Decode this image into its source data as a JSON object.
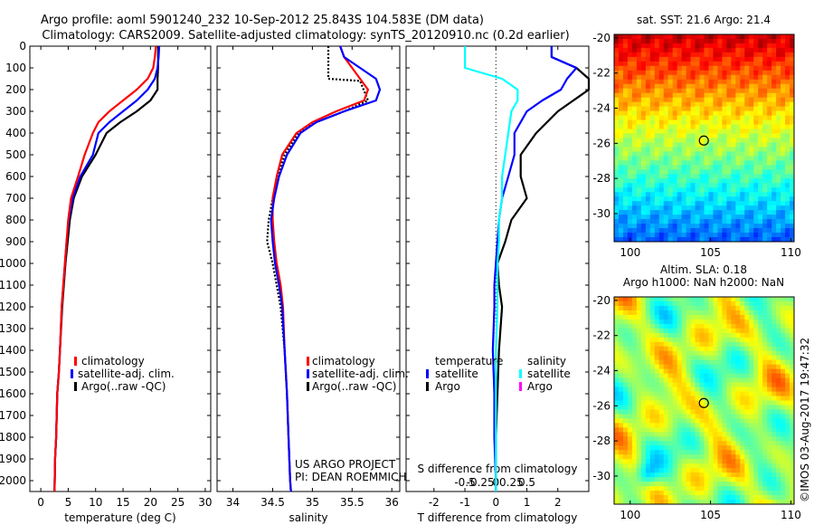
{
  "title": {
    "line1": "Argo profile: aoml 5901240_232 10-Sep-2012 25.843S 104.583E (DM data)",
    "line2": "Climatology: CARS2009. Satellite-adjusted climatology: synTS_20120910.nc (0.2d earlier)"
  },
  "legend_items": {
    "clim": "climatology",
    "sat": "satellite-adj. clim.",
    "argo": "Argo(..raw -QC)"
  },
  "legend_diff": {
    "temp_header": "temperature",
    "sal_header": "salinity",
    "t_sat": "satellite",
    "t_argo": "Argo",
    "s_sat": "satellite",
    "s_argo": "Argo"
  },
  "project_note": {
    "line1": "US ARGO PROJECT",
    "line2": "PI: DEAN ROEMMICH"
  },
  "sst_label": "sat. SST: 21.6 Argo: 21.4",
  "sla_label1": "Altim. SLA: 0.18",
  "sla_label2": "Argo h1000: NaN h2000: NaN",
  "imos_stamp": "©IMOS 03-Aug-2017 19:47:32",
  "colors": {
    "climatology": "#ff0000",
    "satellite": "#0000ff",
    "argo": "#000000",
    "sal_satellite": "#00ffff",
    "sal_argo": "#ff00ff"
  },
  "chart_data": [
    {
      "type": "line",
      "panel": "temperature",
      "xlabel": "temperature (deg C)",
      "ylabel": "",
      "xlim": [
        -2,
        31
      ],
      "ylim": [
        2050,
        0
      ],
      "xticks": [
        0,
        5,
        10,
        15,
        20,
        25,
        30
      ],
      "yticks": [
        0,
        100,
        200,
        300,
        400,
        500,
        600,
        700,
        800,
        900,
        1000,
        1100,
        1200,
        1300,
        1400,
        1500,
        1600,
        1700,
        1800,
        1900,
        2000
      ],
      "series": [
        {
          "name": "climatology",
          "x": [
            21.0,
            20.8,
            20.5,
            19.5,
            17.5,
            15.0,
            12.5,
            10.5,
            9.5,
            8.0,
            6.8,
            5.5,
            5.0,
            4.7,
            4.4,
            4.1,
            3.8,
            3.5,
            3.3,
            3.0,
            2.8,
            2.6,
            2.5
          ],
          "y": [
            0,
            50,
            100,
            150,
            200,
            250,
            300,
            350,
            400,
            500,
            600,
            700,
            800,
            900,
            1000,
            1100,
            1200,
            1400,
            1500,
            1600,
            1800,
            1900,
            2050
          ]
        },
        {
          "name": "satellite-adj. clim.",
          "x": [
            21.6,
            21.5,
            21.3,
            20.8,
            19.5,
            17.5,
            15.0,
            12.5,
            10.5,
            9.5,
            7.2,
            5.8,
            5.1,
            4.7,
            4.4,
            4.1,
            3.8,
            3.5,
            3.3,
            3.0,
            2.8,
            2.6,
            2.5
          ],
          "y": [
            0,
            50,
            100,
            150,
            200,
            250,
            300,
            350,
            400,
            500,
            600,
            700,
            800,
            900,
            1000,
            1100,
            1200,
            1400,
            1500,
            1600,
            1800,
            1900,
            2050
          ]
        },
        {
          "name": "Argo(..raw -QC)",
          "x": [
            21.4,
            21.4,
            21.4,
            21.3,
            21.3,
            20.0,
            17.5,
            14.5,
            12.0,
            10.0,
            7.5,
            6.0,
            5.3,
            4.9,
            4.5,
            4.2,
            3.9,
            3.5,
            3.3,
            3.0,
            2.8,
            2.6,
            2.5
          ],
          "y": [
            0,
            50,
            100,
            150,
            200,
            250,
            300,
            350,
            400,
            500,
            600,
            700,
            800,
            900,
            1000,
            1100,
            1200,
            1400,
            1500,
            1600,
            1800,
            1900,
            2050
          ]
        }
      ]
    },
    {
      "type": "line",
      "panel": "salinity",
      "xlabel": "salinity",
      "xlim": [
        33.8,
        36.1
      ],
      "ylim": [
        2050,
        0
      ],
      "xticks": [
        34,
        34.5,
        35,
        35.5,
        36
      ],
      "series": [
        {
          "name": "climatology",
          "x": [
            35.35,
            35.4,
            35.5,
            35.6,
            35.7,
            35.65,
            35.3,
            35.0,
            34.8,
            34.62,
            34.55,
            34.5,
            34.5,
            34.52,
            34.55,
            34.6,
            34.63,
            34.65,
            34.68,
            34.7,
            34.72,
            34.73
          ],
          "y": [
            0,
            50,
            100,
            150,
            200,
            250,
            300,
            350,
            400,
            500,
            600,
            700,
            800,
            900,
            1000,
            1100,
            1200,
            1400,
            1600,
            1800,
            2000,
            2050
          ]
        },
        {
          "name": "satellite-adj. clim.",
          "x": [
            35.35,
            35.4,
            35.6,
            35.8,
            35.85,
            35.8,
            35.4,
            35.05,
            34.85,
            34.68,
            34.58,
            34.52,
            34.48,
            34.5,
            34.53,
            34.58,
            34.62,
            34.65,
            34.68,
            34.7,
            34.72,
            34.73
          ],
          "y": [
            0,
            50,
            100,
            150,
            200,
            250,
            300,
            350,
            400,
            500,
            600,
            700,
            800,
            900,
            1000,
            1100,
            1200,
            1400,
            1600,
            1800,
            2000,
            2050
          ]
        },
        {
          "name": "Argo(..raw -QC)",
          "x": [
            35.2,
            35.2,
            35.2,
            35.2,
            35.6,
            35.7,
            35.4,
            35.05,
            34.82,
            34.65,
            34.56,
            34.5,
            34.45,
            34.43,
            34.5,
            34.55,
            34.6,
            34.65,
            34.68,
            34.7,
            34.72,
            34.73
          ],
          "y": [
            0,
            50,
            100,
            150,
            160,
            250,
            300,
            350,
            400,
            500,
            600,
            700,
            800,
            900,
            1000,
            1100,
            1200,
            1400,
            1600,
            1800,
            2000,
            2050
          ]
        }
      ]
    },
    {
      "type": "line",
      "panel": "difference",
      "xlabel": "T difference from climatology",
      "top_label": "S difference from climatology",
      "xlim": [
        -2.9,
        3.0
      ],
      "ylim": [
        2050,
        0
      ],
      "xticks": [
        -2,
        -1,
        0,
        1,
        2
      ],
      "top_ticks": [
        "-0.5",
        "-0.25",
        "0",
        "0.25",
        "0.5"
      ],
      "series": [
        {
          "name": "T satellite",
          "x": [
            1.8,
            1.8,
            2.6,
            2.3,
            2.1,
            1.5,
            1.0,
            0.6,
            0.6,
            0.4,
            0.2,
            0.1,
            0.05,
            0.0,
            -0.05,
            -0.05,
            -0.1,
            -0.05,
            -0.05,
            0.0,
            0.0
          ],
          "y": [
            0,
            50,
            100,
            150,
            200,
            250,
            300,
            400,
            500,
            600,
            700,
            800,
            900,
            1000,
            1100,
            1200,
            1400,
            1600,
            1800,
            2000,
            2050
          ]
        },
        {
          "name": "T Argo",
          "x": [
            1.8,
            1.8,
            2.6,
            3.0,
            3.0,
            2.5,
            2.0,
            1.3,
            0.8,
            0.8,
            1.0,
            0.5,
            0.3,
            0.05,
            0.1,
            0.2,
            0.1,
            0.05,
            0.0,
            0.0,
            0.0
          ],
          "y": [
            0,
            50,
            100,
            150,
            200,
            250,
            300,
            400,
            500,
            600,
            700,
            800,
            900,
            1000,
            1100,
            1200,
            1400,
            1600,
            1800,
            2000,
            2050
          ]
        },
        {
          "name": "S satellite",
          "x": [
            -1.0,
            -1.0,
            -1.0,
            0.2,
            0.7,
            0.7,
            0.5,
            0.4,
            0.3,
            0.2,
            0.2,
            0.1,
            0.1,
            0.05,
            0.05,
            0.05,
            0.0,
            0.0,
            0.0,
            0.0,
            0.0
          ],
          "y": [
            0,
            50,
            100,
            150,
            200,
            250,
            300,
            400,
            500,
            600,
            700,
            800,
            900,
            1000,
            1100,
            1200,
            1400,
            1600,
            1800,
            2000,
            2050
          ]
        },
        {
          "name": "S Argo",
          "x": [],
          "y": []
        }
      ]
    },
    {
      "type": "heatmap",
      "panel": "sst_map",
      "title": "sat. SST: 21.6 Argo: 21.4",
      "xlim": [
        99,
        110.2
      ],
      "ylim": [
        -31.6,
        -19.8
      ],
      "xticks": [
        100,
        105,
        110
      ],
      "yticks": [
        -20,
        -22,
        -24,
        -26,
        -28,
        -30
      ],
      "marker": {
        "lon": 104.583,
        "lat": -25.843
      }
    },
    {
      "type": "heatmap",
      "panel": "sla_map",
      "title": "Altim. SLA: 0.18",
      "xlim": [
        99,
        110.2
      ],
      "ylim": [
        -31.6,
        -19.8
      ],
      "xticks": [
        100,
        105,
        110
      ],
      "yticks": [
        -20,
        -22,
        -24,
        -26,
        -28,
        -30
      ],
      "marker": {
        "lon": 104.583,
        "lat": -25.843
      }
    }
  ]
}
